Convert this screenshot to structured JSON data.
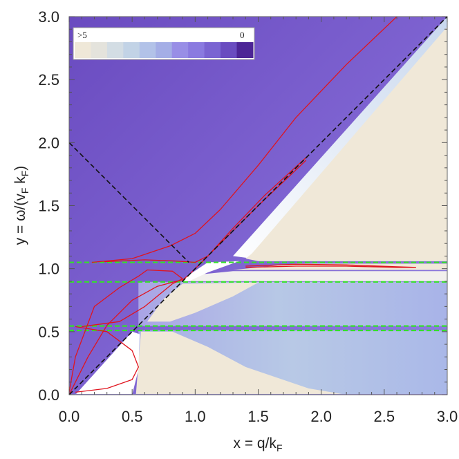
{
  "chart_data": {
    "type": "heatmap",
    "title": "",
    "xlabel": "x = q/k",
    "xlabel_sub": "F",
    "ylabel": "y = ω/(v",
    "ylabel_sub1": "F",
    "ylabel_mid": " k",
    "ylabel_sub2": "F",
    "ylabel_end": ")",
    "xlim": [
      0,
      3
    ],
    "ylim": [
      0,
      3
    ],
    "x_ticks": [
      "0.0",
      "0.5",
      "1.0",
      "1.5",
      "2.0",
      "2.5",
      "3.0"
    ],
    "y_ticks": [
      "0.0",
      "0.5",
      "1.0",
      "1.5",
      "2.0",
      "2.5",
      "3.0"
    ],
    "legend": {
      "position": "top-left",
      "left_label": ">5",
      "right_label": "0",
      "colors": [
        "#efe8d8",
        "#e4e3dc",
        "#d3dde4",
        "#c2d3e6",
        "#b2c2e8",
        "#a4aee6",
        "#988ee6",
        "#8a7ae0",
        "#7a64d2",
        "#6a4cc0",
        "#4c2596"
      ]
    },
    "heatmap_colors": {
      "deep": "#6a4bc0",
      "mid": "#8878de",
      "light": "#b2c6e6",
      "beige": "#f0e8d8",
      "white": "#ffffff"
    },
    "reference_lines": [
      {
        "style": "black-dashed",
        "points": [
          [
            0,
            0
          ],
          [
            3,
            3
          ]
        ]
      },
      {
        "style": "black-dashed",
        "points": [
          [
            0,
            2
          ],
          [
            0.95,
            1.05
          ]
        ]
      }
    ],
    "green_dashed_levels": [
      0.51,
      0.545,
      0.895,
      1.05
    ],
    "red_curves": [
      {
        "name": "upper-branch",
        "points": [
          [
            0.18,
            1.05
          ],
          [
            0.5,
            1.08
          ],
          [
            0.8,
            1.18
          ],
          [
            1.0,
            1.28
          ],
          [
            1.2,
            1.47
          ],
          [
            1.5,
            1.82
          ],
          [
            1.8,
            2.2
          ],
          [
            2.2,
            2.62
          ],
          [
            2.6,
            3.0
          ]
        ]
      },
      {
        "name": "lower-branch",
        "points": [
          [
            0.28,
            1.055
          ],
          [
            0.6,
            1.07
          ],
          [
            0.85,
            1.06
          ],
          [
            1.0,
            1.05
          ],
          [
            1.1,
            1.1
          ],
          [
            1.3,
            1.32
          ],
          [
            1.55,
            1.58
          ],
          [
            1.9,
            1.9
          ]
        ]
      },
      {
        "name": "mid-branch",
        "points": [
          [
            0.0,
            0.0
          ],
          [
            0.15,
            0.3
          ],
          [
            0.3,
            0.55
          ],
          [
            0.5,
            0.75
          ],
          [
            0.7,
            0.86
          ],
          [
            0.85,
            0.9
          ],
          [
            0.9,
            0.91
          ],
          [
            0.95,
            0.95
          ],
          [
            1.0,
            1.0
          ],
          [
            1.2,
            1.2
          ],
          [
            1.5,
            1.5
          ],
          [
            1.88,
            1.86
          ]
        ]
      },
      {
        "name": "loop-branch",
        "points": [
          [
            0.1,
            0.54
          ],
          [
            0.4,
            0.58
          ],
          [
            0.6,
            0.7
          ],
          [
            0.82,
            0.88
          ],
          [
            0.9,
            0.92
          ],
          [
            0.82,
            0.98
          ],
          [
            0.62,
            0.99
          ],
          [
            0.55,
            0.94
          ],
          [
            0.4,
            0.85
          ],
          [
            0.2,
            0.7
          ],
          [
            0.05,
            0.3
          ],
          [
            0.0,
            0.02
          ]
        ]
      },
      {
        "name": "inner-branch",
        "points": [
          [
            0.05,
            0.54
          ],
          [
            0.3,
            0.5
          ],
          [
            0.5,
            0.35
          ],
          [
            0.55,
            0.22
          ],
          [
            0.5,
            0.12
          ],
          [
            0.3,
            0.05
          ],
          [
            0.05,
            0.02
          ]
        ]
      },
      {
        "name": "right-loop",
        "points": [
          [
            1.4,
            1.01
          ],
          [
            1.8,
            1.02
          ],
          [
            2.2,
            1.02
          ],
          [
            2.6,
            1.01
          ],
          [
            2.75,
            1.01
          ],
          [
            2.6,
            1.015
          ],
          [
            2.2,
            1.03
          ],
          [
            1.8,
            1.035
          ],
          [
            1.4,
            1.02
          ]
        ]
      }
    ]
  }
}
